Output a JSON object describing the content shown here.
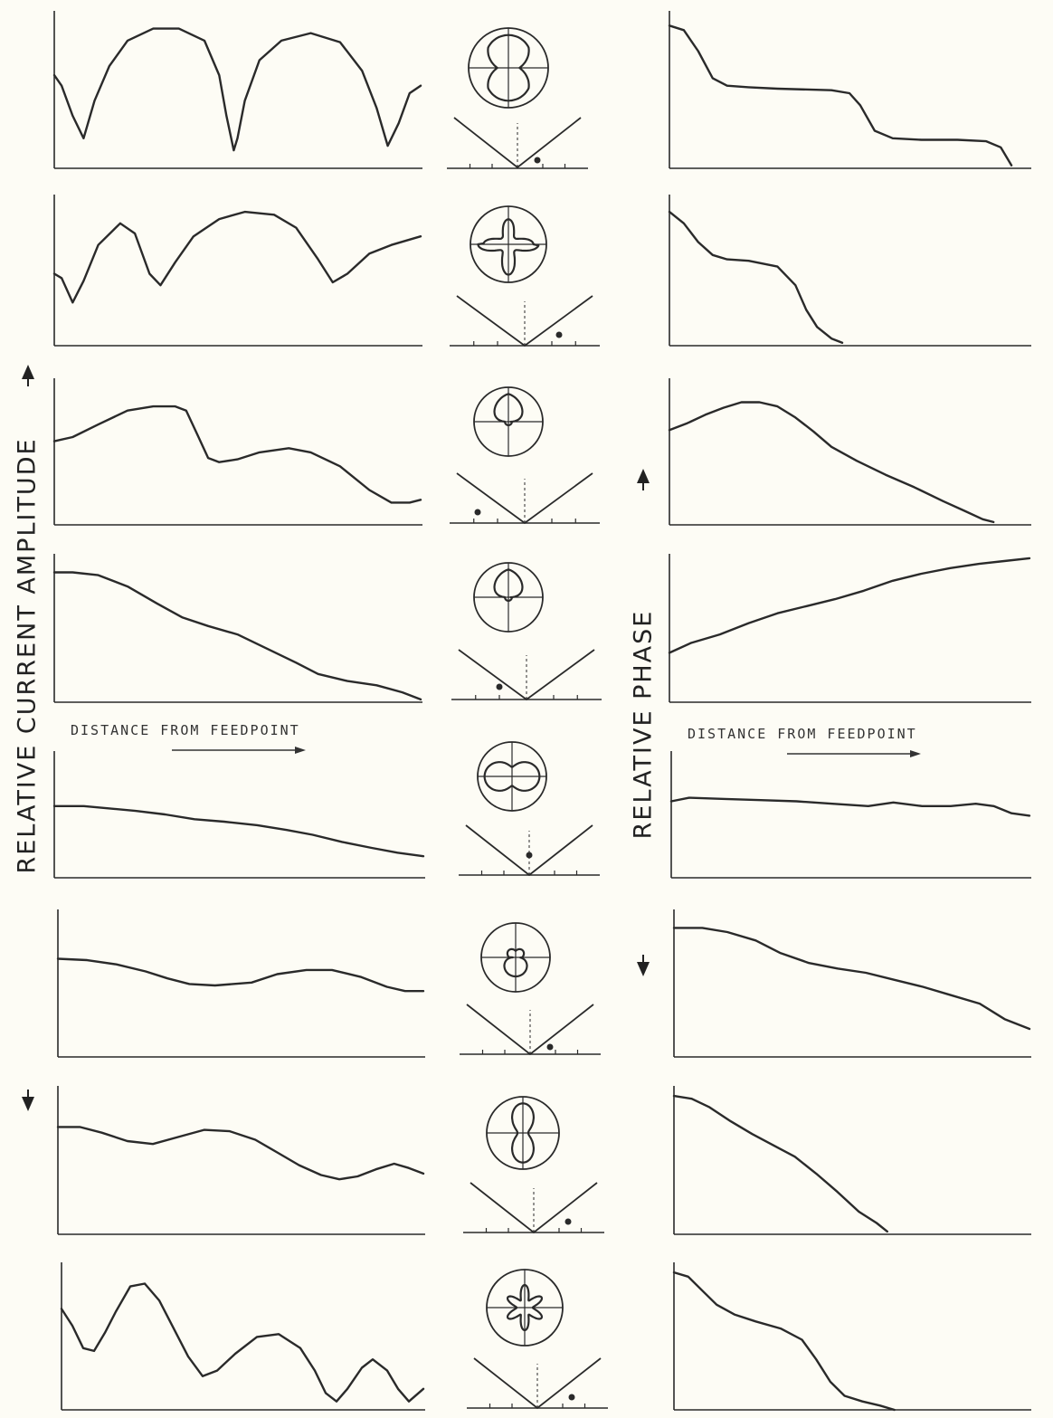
{
  "labels": {
    "amplitude_axis": "RELATIVE CURRENT AMPLITUDE",
    "phase_axis": "RELATIVE PHASE",
    "distance_left": "DISTANCE FROM FEEDPOINT",
    "distance_right": "DISTANCE FROM FEEDPOINT"
  },
  "chart_data": {
    "type": "line",
    "panel_rows": 8,
    "columns": [
      "amplitude",
      "pattern",
      "phase"
    ],
    "amplitude_curves": [
      [
        [
          0,
          0.62
        ],
        [
          0.02,
          0.55
        ],
        [
          0.05,
          0.35
        ],
        [
          0.08,
          0.2
        ],
        [
          0.11,
          0.45
        ],
        [
          0.15,
          0.68
        ],
        [
          0.2,
          0.85
        ],
        [
          0.27,
          0.93
        ],
        [
          0.34,
          0.93
        ],
        [
          0.41,
          0.85
        ],
        [
          0.45,
          0.62
        ],
        [
          0.47,
          0.35
        ],
        [
          0.49,
          0.12
        ],
        [
          0.5,
          0.2
        ],
        [
          0.52,
          0.45
        ],
        [
          0.56,
          0.72
        ],
        [
          0.62,
          0.85
        ],
        [
          0.7,
          0.9
        ],
        [
          0.78,
          0.84
        ],
        [
          0.84,
          0.65
        ],
        [
          0.88,
          0.4
        ],
        [
          0.91,
          0.15
        ],
        [
          0.94,
          0.3
        ],
        [
          0.97,
          0.5
        ],
        [
          1.0,
          0.55
        ]
      ],
      [
        [
          0,
          0.5
        ],
        [
          0.02,
          0.47
        ],
        [
          0.05,
          0.3
        ],
        [
          0.08,
          0.45
        ],
        [
          0.12,
          0.7
        ],
        [
          0.18,
          0.85
        ],
        [
          0.22,
          0.78
        ],
        [
          0.26,
          0.5
        ],
        [
          0.29,
          0.42
        ],
        [
          0.33,
          0.58
        ],
        [
          0.38,
          0.76
        ],
        [
          0.45,
          0.88
        ],
        [
          0.52,
          0.93
        ],
        [
          0.6,
          0.91
        ],
        [
          0.66,
          0.82
        ],
        [
          0.72,
          0.6
        ],
        [
          0.76,
          0.44
        ],
        [
          0.8,
          0.5
        ],
        [
          0.86,
          0.64
        ],
        [
          0.92,
          0.7
        ],
        [
          1.0,
          0.76
        ]
      ],
      [
        [
          0,
          0.6
        ],
        [
          0.05,
          0.63
        ],
        [
          0.12,
          0.72
        ],
        [
          0.2,
          0.82
        ],
        [
          0.27,
          0.85
        ],
        [
          0.33,
          0.85
        ],
        [
          0.36,
          0.82
        ],
        [
          0.39,
          0.65
        ],
        [
          0.42,
          0.48
        ],
        [
          0.45,
          0.45
        ],
        [
          0.5,
          0.47
        ],
        [
          0.56,
          0.52
        ],
        [
          0.64,
          0.55
        ],
        [
          0.7,
          0.52
        ],
        [
          0.78,
          0.42
        ],
        [
          0.86,
          0.25
        ],
        [
          0.92,
          0.16
        ],
        [
          0.97,
          0.16
        ],
        [
          1.0,
          0.18
        ]
      ],
      [
        [
          0,
          0.92
        ],
        [
          0.05,
          0.92
        ],
        [
          0.12,
          0.9
        ],
        [
          0.2,
          0.82
        ],
        [
          0.28,
          0.7
        ],
        [
          0.35,
          0.6
        ],
        [
          0.42,
          0.54
        ],
        [
          0.5,
          0.48
        ],
        [
          0.58,
          0.38
        ],
        [
          0.66,
          0.28
        ],
        [
          0.72,
          0.2
        ],
        [
          0.8,
          0.15
        ],
        [
          0.88,
          0.12
        ],
        [
          0.95,
          0.07
        ],
        [
          1.0,
          0.02
        ]
      ],
      [
        [
          0,
          0.6
        ],
        [
          0.08,
          0.6
        ],
        [
          0.15,
          0.58
        ],
        [
          0.22,
          0.56
        ],
        [
          0.3,
          0.53
        ],
        [
          0.38,
          0.49
        ],
        [
          0.46,
          0.47
        ],
        [
          0.55,
          0.44
        ],
        [
          0.63,
          0.4
        ],
        [
          0.7,
          0.36
        ],
        [
          0.78,
          0.3
        ],
        [
          0.86,
          0.25
        ],
        [
          0.93,
          0.21
        ],
        [
          1.0,
          0.18
        ]
      ],
      [
        [
          0,
          0.7
        ],
        [
          0.08,
          0.69
        ],
        [
          0.16,
          0.66
        ],
        [
          0.24,
          0.61
        ],
        [
          0.3,
          0.56
        ],
        [
          0.36,
          0.52
        ],
        [
          0.43,
          0.51
        ],
        [
          0.53,
          0.53
        ],
        [
          0.6,
          0.59
        ],
        [
          0.68,
          0.62
        ],
        [
          0.75,
          0.62
        ],
        [
          0.83,
          0.57
        ],
        [
          0.9,
          0.5
        ],
        [
          0.95,
          0.47
        ],
        [
          1.0,
          0.47
        ]
      ],
      [
        [
          0,
          0.76
        ],
        [
          0.06,
          0.76
        ],
        [
          0.12,
          0.72
        ],
        [
          0.19,
          0.66
        ],
        [
          0.26,
          0.64
        ],
        [
          0.33,
          0.69
        ],
        [
          0.4,
          0.74
        ],
        [
          0.47,
          0.73
        ],
        [
          0.54,
          0.67
        ],
        [
          0.6,
          0.58
        ],
        [
          0.66,
          0.49
        ],
        [
          0.72,
          0.42
        ],
        [
          0.77,
          0.39
        ],
        [
          0.82,
          0.41
        ],
        [
          0.87,
          0.46
        ],
        [
          0.92,
          0.5
        ],
        [
          0.96,
          0.47
        ],
        [
          1.0,
          0.43
        ]
      ],
      [
        [
          0,
          0.72
        ],
        [
          0.03,
          0.6
        ],
        [
          0.06,
          0.44
        ],
        [
          0.09,
          0.42
        ],
        [
          0.12,
          0.55
        ],
        [
          0.15,
          0.7
        ],
        [
          0.19,
          0.88
        ],
        [
          0.23,
          0.9
        ],
        [
          0.27,
          0.78
        ],
        [
          0.31,
          0.58
        ],
        [
          0.35,
          0.38
        ],
        [
          0.39,
          0.24
        ],
        [
          0.43,
          0.28
        ],
        [
          0.48,
          0.4
        ],
        [
          0.54,
          0.52
        ],
        [
          0.6,
          0.54
        ],
        [
          0.66,
          0.44
        ],
        [
          0.7,
          0.28
        ],
        [
          0.73,
          0.12
        ],
        [
          0.76,
          0.06
        ],
        [
          0.79,
          0.15
        ],
        [
          0.83,
          0.3
        ],
        [
          0.86,
          0.36
        ],
        [
          0.9,
          0.28
        ],
        [
          0.93,
          0.15
        ],
        [
          0.96,
          0.06
        ],
        [
          1.0,
          0.15
        ]
      ]
    ],
    "phase_curves": [
      [
        [
          0,
          0.95
        ],
        [
          0.04,
          0.92
        ],
        [
          0.08,
          0.78
        ],
        [
          0.12,
          0.6
        ],
        [
          0.16,
          0.55
        ],
        [
          0.22,
          0.54
        ],
        [
          0.3,
          0.53
        ],
        [
          0.45,
          0.52
        ],
        [
          0.5,
          0.5
        ],
        [
          0.53,
          0.42
        ],
        [
          0.57,
          0.25
        ],
        [
          0.62,
          0.2
        ],
        [
          0.7,
          0.19
        ],
        [
          0.8,
          0.19
        ],
        [
          0.88,
          0.18
        ],
        [
          0.92,
          0.14
        ],
        [
          0.95,
          0.02
        ]
      ],
      [
        [
          0,
          0.93
        ],
        [
          0.04,
          0.85
        ],
        [
          0.08,
          0.72
        ],
        [
          0.12,
          0.63
        ],
        [
          0.16,
          0.6
        ],
        [
          0.22,
          0.59
        ],
        [
          0.3,
          0.55
        ],
        [
          0.35,
          0.42
        ],
        [
          0.38,
          0.25
        ],
        [
          0.41,
          0.13
        ],
        [
          0.45,
          0.05
        ],
        [
          0.48,
          0.02
        ]
      ],
      [
        [
          0,
          0.68
        ],
        [
          0.05,
          0.73
        ],
        [
          0.1,
          0.79
        ],
        [
          0.15,
          0.84
        ],
        [
          0.2,
          0.88
        ],
        [
          0.25,
          0.88
        ],
        [
          0.3,
          0.85
        ],
        [
          0.35,
          0.77
        ],
        [
          0.4,
          0.67
        ],
        [
          0.45,
          0.56
        ],
        [
          0.52,
          0.46
        ],
        [
          0.6,
          0.36
        ],
        [
          0.68,
          0.27
        ],
        [
          0.76,
          0.17
        ],
        [
          0.82,
          0.1
        ],
        [
          0.87,
          0.04
        ],
        [
          0.9,
          0.02
        ]
      ],
      [
        [
          0,
          0.35
        ],
        [
          0.06,
          0.42
        ],
        [
          0.14,
          0.48
        ],
        [
          0.22,
          0.56
        ],
        [
          0.3,
          0.63
        ],
        [
          0.38,
          0.68
        ],
        [
          0.46,
          0.73
        ],
        [
          0.54,
          0.79
        ],
        [
          0.62,
          0.86
        ],
        [
          0.7,
          0.91
        ],
        [
          0.78,
          0.95
        ],
        [
          0.86,
          0.98
        ],
        [
          0.93,
          1.0
        ],
        [
          1.0,
          1.02
        ]
      ],
      [
        [
          0,
          0.64
        ],
        [
          0.05,
          0.67
        ],
        [
          0.15,
          0.66
        ],
        [
          0.25,
          0.65
        ],
        [
          0.35,
          0.64
        ],
        [
          0.45,
          0.62
        ],
        [
          0.55,
          0.6
        ],
        [
          0.62,
          0.63
        ],
        [
          0.7,
          0.6
        ],
        [
          0.78,
          0.6
        ],
        [
          0.85,
          0.62
        ],
        [
          0.9,
          0.6
        ],
        [
          0.95,
          0.54
        ],
        [
          1.0,
          0.52
        ]
      ],
      [
        [
          0,
          0.92
        ],
        [
          0.08,
          0.92
        ],
        [
          0.15,
          0.89
        ],
        [
          0.23,
          0.83
        ],
        [
          0.3,
          0.74
        ],
        [
          0.38,
          0.67
        ],
        [
          0.46,
          0.63
        ],
        [
          0.54,
          0.6
        ],
        [
          0.62,
          0.55
        ],
        [
          0.7,
          0.5
        ],
        [
          0.78,
          0.44
        ],
        [
          0.86,
          0.38
        ],
        [
          0.93,
          0.27
        ],
        [
          1.0,
          0.2
        ]
      ],
      [
        [
          0,
          0.98
        ],
        [
          0.05,
          0.96
        ],
        [
          0.1,
          0.9
        ],
        [
          0.16,
          0.8
        ],
        [
          0.22,
          0.71
        ],
        [
          0.28,
          0.63
        ],
        [
          0.34,
          0.55
        ],
        [
          0.4,
          0.43
        ],
        [
          0.46,
          0.3
        ],
        [
          0.52,
          0.16
        ],
        [
          0.57,
          0.08
        ],
        [
          0.6,
          0.02
        ]
      ],
      [
        [
          0,
          0.98
        ],
        [
          0.04,
          0.95
        ],
        [
          0.08,
          0.85
        ],
        [
          0.12,
          0.75
        ],
        [
          0.17,
          0.68
        ],
        [
          0.23,
          0.63
        ],
        [
          0.3,
          0.58
        ],
        [
          0.36,
          0.5
        ],
        [
          0.4,
          0.36
        ],
        [
          0.44,
          0.2
        ],
        [
          0.48,
          0.1
        ],
        [
          0.53,
          0.06
        ],
        [
          0.58,
          0.03
        ],
        [
          0.62,
          0.0
        ]
      ]
    ],
    "patterns": [
      {
        "shape": "lobes-vertical-notch",
        "dot": "right-low"
      },
      {
        "shape": "star-center",
        "dot": "right"
      },
      {
        "shape": "lobes-top",
        "dot": "left"
      },
      {
        "shape": "lobes-top",
        "dot": "left-low"
      },
      {
        "shape": "wide-horizontal",
        "dot": "center"
      },
      {
        "shape": "lobes-bottom-small",
        "dot": "right-low"
      },
      {
        "shape": "narrow-vertical",
        "dot": "right"
      },
      {
        "shape": "multi-lobe",
        "dot": "right"
      }
    ]
  }
}
